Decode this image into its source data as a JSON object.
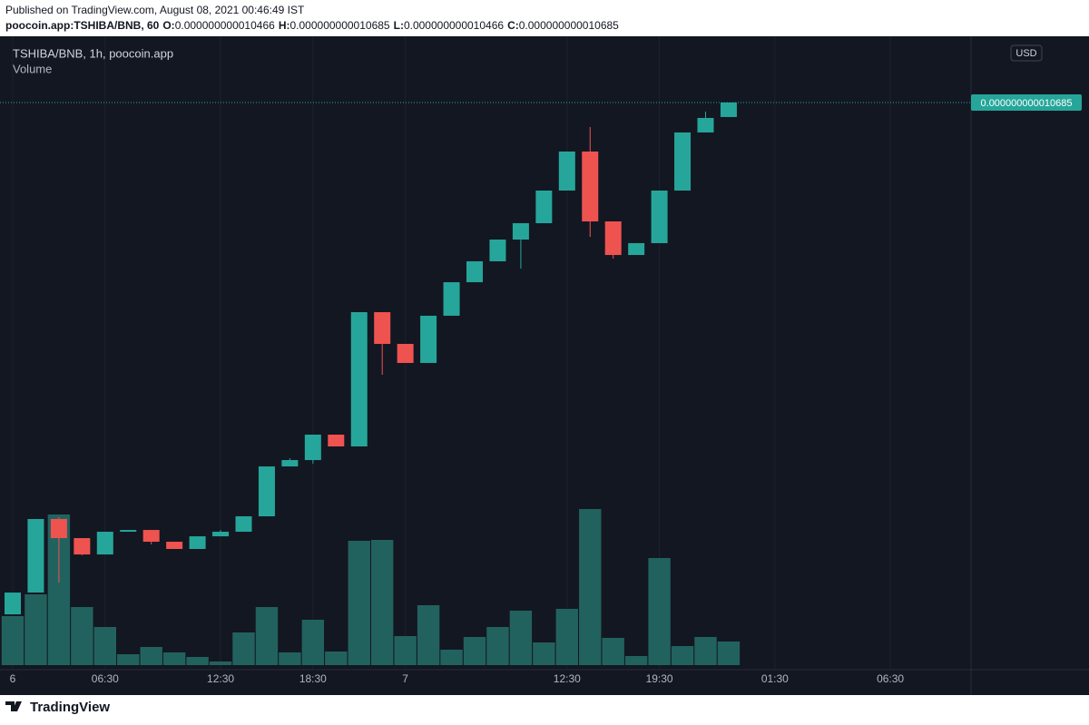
{
  "header": {
    "published": "Published on TradingView.com, August 08, 2021 00:46:49 IST",
    "symbol": "poocoin.app:TSHIBA/BNB, 60",
    "ohlc": [
      {
        "key": "O:",
        "value": "0.000000000010466"
      },
      {
        "key": "H:",
        "value": "0.000000000010685"
      },
      {
        "key": "L:",
        "value": "0.000000000010466"
      },
      {
        "key": "C:",
        "value": "0.000000000010685"
      }
    ]
  },
  "chart_data": {
    "type": "candlestick",
    "legend_title": "TSHIBA/BNB, 1h, poocoin.app",
    "volume_label": "Volume",
    "currency_button": "USD",
    "last_price_label": "0.000000000010685",
    "open": [
      2.958e-12,
      3.287e-12,
      4.397e-12,
      4.109e-12,
      3.862e-12,
      4.205e-12,
      4.232e-12,
      4.054e-12,
      3.945e-12,
      4.136e-12,
      4.205e-12,
      4.438e-12,
      5.191e-12,
      5.287e-12,
      5.671e-12,
      5.493e-12,
      7.52e-12,
      7.041e-12,
      6.753e-12,
      7.466e-12,
      7.972e-12,
      8.288e-12,
      8.616e-12,
      8.863e-12,
      9.356e-12,
      9.945e-12,
      8.89e-12,
      8.383e-12,
      8.562e-12,
      9.356e-12,
      1.0233e-11,
      1.0466e-11
    ],
    "high": [
      3.287e-12,
      4.397e-12,
      4.424e-12,
      4.109e-12,
      4.205e-12,
      4.232e-12,
      4.232e-12,
      4.054e-12,
      4.136e-12,
      4.232e-12,
      4.438e-12,
      5.191e-12,
      5.315e-12,
      5.671e-12,
      5.671e-12,
      7.52e-12,
      7.52e-12,
      7.041e-12,
      7.466e-12,
      7.972e-12,
      8.288e-12,
      8.616e-12,
      8.863e-12,
      9.356e-12,
      9.945e-12,
      1.0315e-11,
      8.89e-12,
      8.562e-12,
      9.356e-12,
      1.0233e-11,
      1.0548e-11,
      1.0685e-11
    ],
    "low": [
      2.958e-12,
      3.287e-12,
      3.438e-12,
      3.849e-12,
      3.862e-12,
      4.205e-12,
      4.013e-12,
      3.945e-12,
      3.945e-12,
      4.136e-12,
      4.205e-12,
      4.438e-12,
      5.191e-12,
      5.232e-12,
      5.493e-12,
      5.493e-12,
      6.575e-12,
      6.753e-12,
      6.753e-12,
      7.466e-12,
      7.972e-12,
      8.288e-12,
      8.178e-12,
      8.863e-12,
      9.356e-12,
      8.657e-12,
      8.329e-12,
      8.383e-12,
      8.562e-12,
      9.356e-12,
      1.0233e-11,
      1.0466e-11
    ],
    "close": [
      3.287e-12,
      4.397e-12,
      4.109e-12,
      3.862e-12,
      4.205e-12,
      4.232e-12,
      4.054e-12,
      3.945e-12,
      4.136e-12,
      4.205e-12,
      4.438e-12,
      5.191e-12,
      5.287e-12,
      5.671e-12,
      5.493e-12,
      7.52e-12,
      7.041e-12,
      6.753e-12,
      7.466e-12,
      7.972e-12,
      8.288e-12,
      8.616e-12,
      8.863e-12,
      9.356e-12,
      9.945e-12,
      8.89e-12,
      8.383e-12,
      8.562e-12,
      9.356e-12,
      1.0233e-11,
      1.0452e-11,
      1.0685e-11
    ],
    "volume": [
      54,
      78,
      166,
      64,
      42,
      12,
      20,
      14,
      9,
      4,
      36,
      64,
      14,
      50,
      15,
      137,
      138,
      32,
      66,
      17,
      31,
      42,
      60,
      25,
      62,
      172,
      30,
      10,
      118,
      21,
      31,
      26
    ],
    "ylim": [
      2.123e-12,
      1.163e-11
    ],
    "volume_ylim": [
      0,
      200
    ],
    "xlim": [
      0,
      41.5
    ],
    "xticks": [
      {
        "value": 0,
        "label": "6"
      },
      {
        "value": 4,
        "label": "06:30"
      },
      {
        "value": 9,
        "label": "12:30"
      },
      {
        "value": 13,
        "label": "18:30"
      },
      {
        "value": 17,
        "label": "7"
      },
      {
        "value": 24,
        "label": "12:30"
      },
      {
        "value": 28,
        "label": "19:30"
      },
      {
        "value": 33,
        "label": "01:30"
      },
      {
        "value": 38,
        "label": "06:30"
      }
    ],
    "up_color": "#26a69a",
    "down_color": "#ef5350",
    "volume_color": "#22625e",
    "grid": true
  },
  "footer": {
    "brand": "TradingView"
  }
}
